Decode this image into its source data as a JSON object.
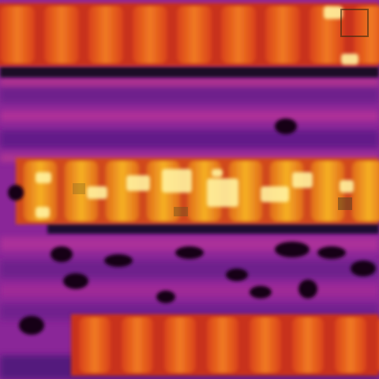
{
  "image": {
    "kind": "thermal-heat-map",
    "palette": {
      "cold": "#140018",
      "cool": "#5a1a8c",
      "mid": "#a42ca0",
      "warm": "#e0501e",
      "hot": "#f4a020",
      "hottest": "#fff2a0"
    },
    "bands": [
      {
        "name": "top-band",
        "cells": 9,
        "intensity": "warm"
      },
      {
        "name": "middle-band",
        "cells": 9,
        "intensity": "hot"
      },
      {
        "name": "bottom-band",
        "cells": 8,
        "intensity": "warm"
      }
    ]
  }
}
